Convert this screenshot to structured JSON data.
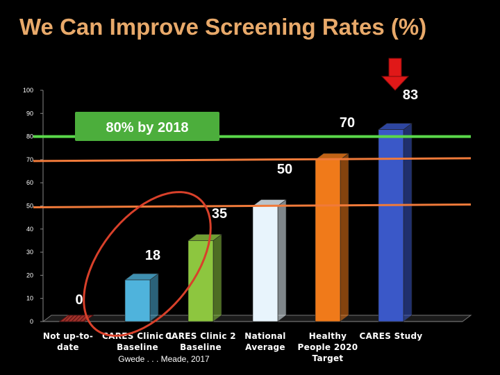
{
  "title": "We Can Improve Screening Rates (%)",
  "colors": {
    "background": "#000000",
    "title": "#e8a96a",
    "target_line": "#5ad84a",
    "reference_lines": "#f07a3a",
    "target_box": "#4cae3c",
    "arrow": "#e01818",
    "circle": "#d8402a"
  },
  "annotations": {
    "target_label": "80% by 2018",
    "citation": "Gwede . . . Meade, 2017",
    "circle_highlight": "oval around Not up-to-date, CARES Clinic 1 and CARES Clinic 2 bars",
    "arrow_icon": "down-arrow-icon"
  },
  "chart_data": {
    "type": "bar",
    "categories": [
      [
        "Not up-to-",
        "date"
      ],
      [
        "CARES Clinic 1",
        "Baseline"
      ],
      [
        "CARES Clinic 2",
        "Baseline"
      ],
      [
        "National",
        "Average"
      ],
      [
        "Healthy",
        "People 2020",
        "Target"
      ],
      [
        "CARES Study"
      ]
    ],
    "values": [
      0,
      18,
      35,
      50,
      70,
      83
    ],
    "value_labels": [
      "0",
      "18",
      "35",
      "50",
      "70",
      "83"
    ],
    "bar_colors": [
      "#a0302a",
      "#4fb3dc",
      "#8dc63f",
      "#e8f4fc",
      "#f07a1a",
      "#3a58c8"
    ],
    "ylim": [
      0,
      100
    ],
    "yticks": [
      "0",
      "10",
      "20",
      "30",
      "40",
      "50",
      "60",
      "70",
      "80",
      "90",
      "100"
    ],
    "reference_lines": [
      {
        "value": 50,
        "color": "#f07a3a"
      },
      {
        "value": 70,
        "color": "#f07a3a"
      },
      {
        "value": 80,
        "color": "#5ad84a"
      }
    ],
    "grid": false,
    "legend": "none",
    "style": "3d"
  }
}
